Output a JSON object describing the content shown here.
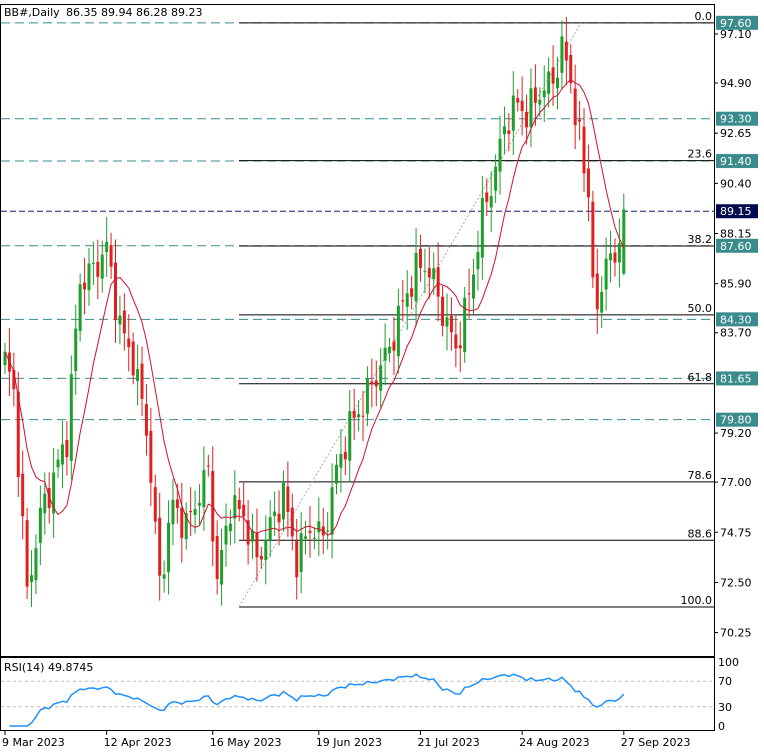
{
  "header": {
    "symbol": "BB#,Daily",
    "ohlc": "86.35 89.94 86.28 89.23"
  },
  "chart_data": {
    "type": "candlestick",
    "yaxis": {
      "range": [
        69.2,
        98.4
      ],
      "ticks": [
        "97.10",
        "94.90",
        "92.65",
        "90.40",
        "88.15",
        "85.90",
        "83.70",
        "79.20",
        "77.00",
        "74.75",
        "72.50",
        "70.25"
      ],
      "tick_values": [
        97.1,
        94.9,
        92.65,
        90.4,
        88.15,
        85.9,
        83.7,
        79.2,
        77.0,
        74.75,
        72.5,
        70.25
      ]
    },
    "xaxis": {
      "labels": [
        "9 Mar 2023",
        "12 Apr 2023",
        "16 May 2023",
        "19 Jun 2023",
        "21 Jul 2023",
        "24 Aug 2023",
        "27 Sep 2023"
      ],
      "label_bar_index": [
        0,
        23,
        47,
        71,
        94,
        117,
        140
      ]
    },
    "current_price": {
      "value": 89.15,
      "label": "89.15"
    },
    "support_resistance": [
      {
        "value": 97.6,
        "label": "97.60",
        "color": "#3a8c8c"
      },
      {
        "value": 93.3,
        "label": "93.30",
        "color": "#3a8c8c"
      },
      {
        "value": 91.4,
        "label": "91.40",
        "color": "#3a8c8c"
      },
      {
        "value": 87.6,
        "label": "87.60",
        "color": "#3a8c8c"
      },
      {
        "value": 84.3,
        "label": "84.30",
        "color": "#3a8c8c"
      },
      {
        "value": 81.65,
        "label": "81.65",
        "color": "#3a8c8c"
      },
      {
        "value": 79.8,
        "label": "79.80",
        "color": "#3a8c8c"
      }
    ],
    "fibonacci": {
      "high": 97.6,
      "low": 71.4,
      "levels": [
        {
          "label": "0.0",
          "value": 97.6
        },
        {
          "label": "23.6",
          "value": 91.42
        },
        {
          "label": "38.2",
          "value": 87.59
        },
        {
          "label": "50.0",
          "value": 84.5
        },
        {
          "label": "61.8",
          "value": 81.41
        },
        {
          "label": "78.6",
          "value": 77.01
        },
        {
          "label": "88.6",
          "value": 74.39
        },
        {
          "label": "100.0",
          "value": 71.4
        }
      ]
    },
    "waypoints": [
      [
        0,
        82.5
      ],
      [
        2,
        81.0
      ],
      [
        5,
        72.0
      ],
      [
        8,
        75.5
      ],
      [
        11,
        77.2
      ],
      [
        14,
        79.0
      ],
      [
        17,
        86.0
      ],
      [
        20,
        86.5
      ],
      [
        23,
        87.5
      ],
      [
        26,
        84.0
      ],
      [
        29,
        82.5
      ],
      [
        32,
        79.5
      ],
      [
        35,
        72.5
      ],
      [
        38,
        76.0
      ],
      [
        41,
        75.0
      ],
      [
        44,
        76.5
      ],
      [
        46,
        77.5
      ],
      [
        48,
        72.5
      ],
      [
        51,
        76.0
      ],
      [
        54,
        75.5
      ],
      [
        57,
        73.5
      ],
      [
        60,
        75.0
      ],
      [
        63,
        76.5
      ],
      [
        66,
        73.5
      ],
      [
        69,
        75.0
      ],
      [
        72,
        74.5
      ],
      [
        75,
        77.5
      ],
      [
        78,
        79.5
      ],
      [
        81,
        80.5
      ],
      [
        84,
        81.8
      ],
      [
        87,
        83.0
      ],
      [
        90,
        85.0
      ],
      [
        93,
        86.5
      ],
      [
        95,
        86.8
      ],
      [
        97,
        86.0
      ],
      [
        100,
        84.0
      ],
      [
        102,
        83.0
      ],
      [
        104,
        84.5
      ],
      [
        106,
        86.5
      ],
      [
        108,
        89.0
      ],
      [
        111,
        91.0
      ],
      [
        113,
        93.0
      ],
      [
        116,
        94.0
      ],
      [
        118,
        93.5
      ],
      [
        121,
        94.5
      ],
      [
        124,
        95.0
      ],
      [
        126,
        96.5
      ],
      [
        128,
        95.0
      ],
      [
        131,
        91.0
      ],
      [
        132,
        90.0
      ],
      [
        133,
        86.5
      ],
      [
        134,
        84.0
      ],
      [
        136,
        87.5
      ],
      [
        138,
        86.5
      ],
      [
        140,
        89.23
      ]
    ],
    "ma_period": 10,
    "rsi": {
      "label": "RSI(14) 49.8745",
      "ticks": [
        "100",
        "70",
        "30",
        "0"
      ],
      "tick_values": [
        100,
        70,
        30,
        0
      ],
      "levels": [
        70,
        30
      ],
      "last": 49.8745
    }
  }
}
